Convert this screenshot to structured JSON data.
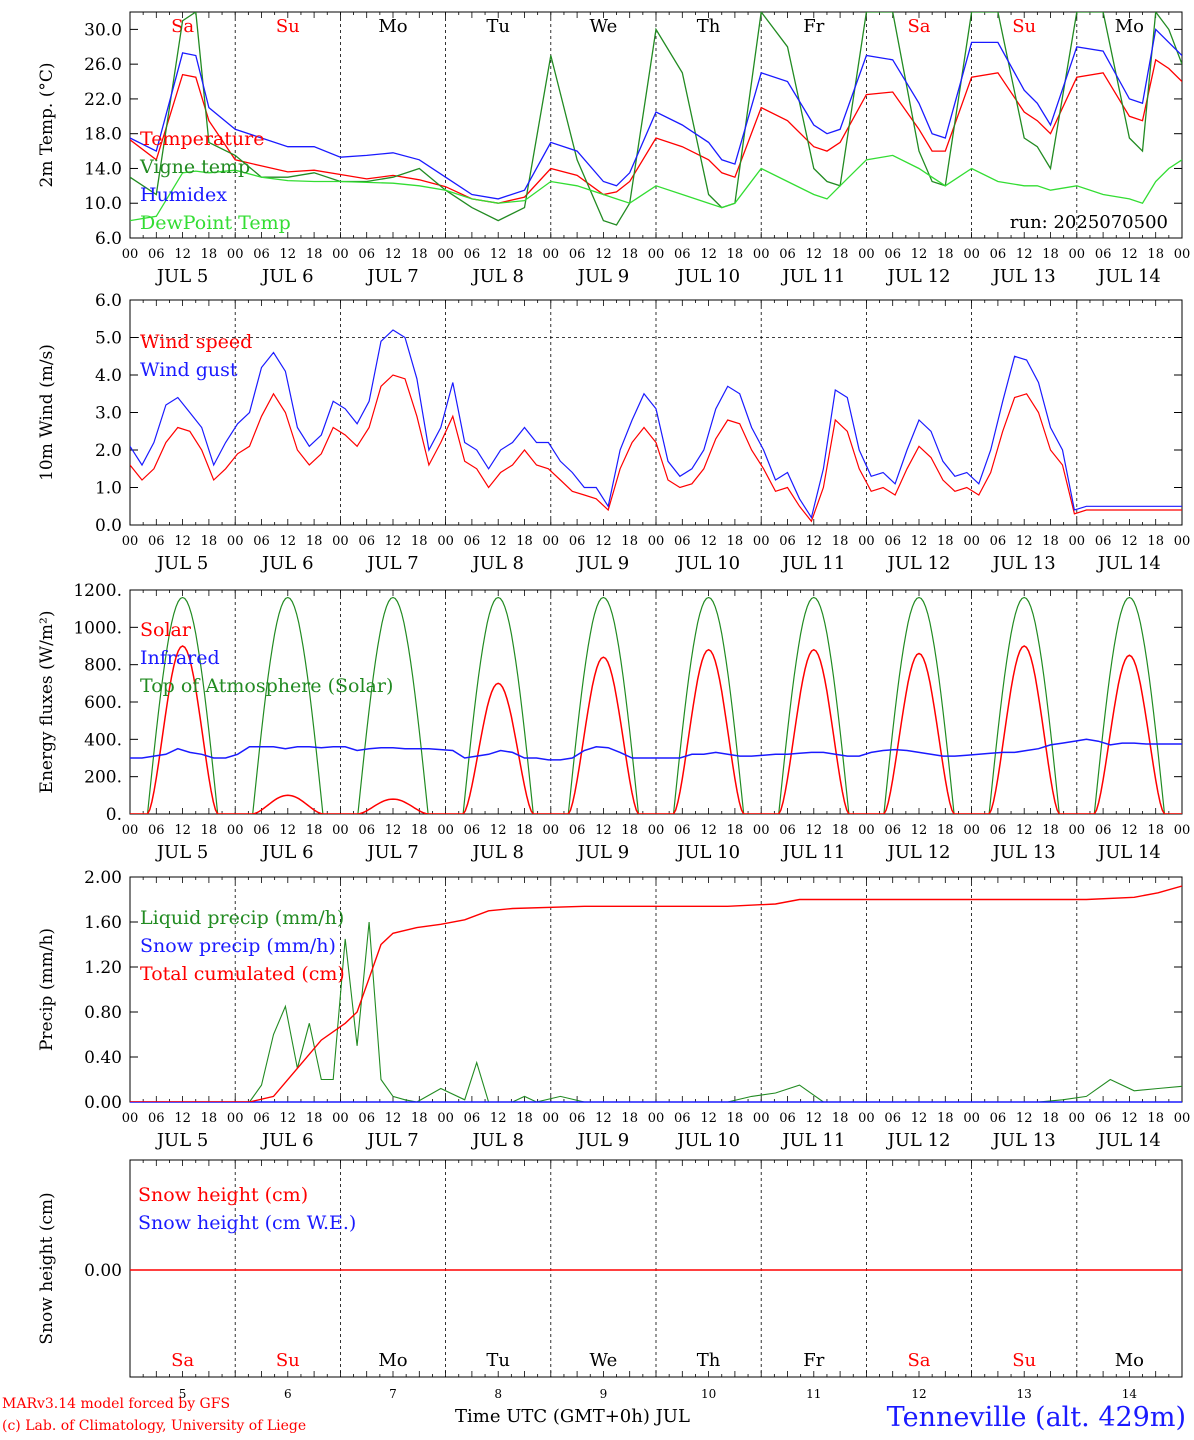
{
  "footer": {
    "model_line": "MARv3.14 model forced by GFS",
    "credit_line": "(c) Lab. of Climatology, University of Liege",
    "xlabel": "Time UTC (GMT+0h) JUL",
    "station": "Tenneville (alt. 429m)"
  },
  "colors": {
    "temperature": "#ff0000",
    "vigne": "#228b22",
    "humidex": "#1a1aff",
    "dewpoint": "#33dd33",
    "wind_speed": "#ff0000",
    "wind_gust": "#1a1aff",
    "solar": "#ff0000",
    "infrared": "#1a1aff",
    "toa": "#228b22",
    "liquid": "#228b22",
    "snow_precip": "#1a1aff",
    "cumulated": "#ff0000",
    "snow_height": "#ff0000",
    "weekend": "#ff0000",
    "weekday": "#000000"
  },
  "days": [
    "Sa",
    "Su",
    "Mo",
    "Tu",
    "We",
    "Th",
    "Fr",
    "Sa",
    "Su",
    "Mo"
  ],
  "weekend": [
    true,
    true,
    false,
    false,
    false,
    false,
    false,
    true,
    true,
    false
  ],
  "dates": [
    "JUL  5",
    "JUL  6",
    "JUL  7",
    "JUL  8",
    "JUL  9",
    "JUL 10",
    "JUL 11",
    "JUL 12",
    "JUL 13",
    "JUL 14"
  ],
  "day_numbers": [
    "5",
    "6",
    "7",
    "8",
    "9",
    "10",
    "11",
    "12",
    "13",
    "14"
  ],
  "hour_ticks": [
    "00",
    "06",
    "12",
    "18"
  ],
  "hour_end": "00",
  "chart_data": [
    {
      "type": "line",
      "ylabel": "2m Temp. (°C)",
      "ylim": [
        6.0,
        32.0
      ],
      "yticks": [
        "6.0",
        "10.0",
        "14.0",
        "18.0",
        "22.0",
        "26.0",
        "30.0"
      ],
      "annotation": "run: 2025070500",
      "x_hours": [
        0,
        6,
        12,
        15,
        18,
        24,
        30,
        36,
        42,
        48,
        54,
        60,
        66,
        72,
        78,
        84,
        90,
        96,
        102,
        108,
        111,
        114,
        120,
        126,
        132,
        135,
        138,
        144,
        150,
        156,
        159,
        162,
        168,
        174,
        180,
        183,
        186,
        192,
        198,
        204,
        207,
        210,
        216,
        222,
        228,
        231,
        234
      ],
      "series": [
        {
          "name": "Temperature",
          "key": "temperature",
          "values": [
            17.3,
            15.0,
            24.8,
            24.5,
            19.5,
            15.0,
            14.3,
            13.6,
            13.8,
            13.3,
            12.8,
            13.2,
            12.7,
            11.9,
            10.5,
            10.0,
            10.7,
            14.0,
            13.2,
            11.0,
            11.3,
            12.5,
            17.5,
            16.5,
            15.0,
            13.5,
            13.0,
            21.0,
            19.5,
            16.5,
            16.0,
            17.0,
            22.5,
            22.8,
            18.5,
            16.0,
            16.0,
            24.5,
            25.0,
            20.5,
            19.5,
            18.0,
            24.5,
            25.0,
            20.0,
            19.5,
            26.5
          ]
        },
        {
          "name": "Vigne temp",
          "key": "vigne",
          "values": [
            13.0,
            11.0,
            31.0,
            32.0,
            17.0,
            15.5,
            13.0,
            13.0,
            13.5,
            12.5,
            12.5,
            13.0,
            14.0,
            11.5,
            9.5,
            8.0,
            9.5,
            27.0,
            15.0,
            8.0,
            7.5,
            10.0,
            30.0,
            25.0,
            11.0,
            9.5,
            10.0,
            32.0,
            28.0,
            14.0,
            12.5,
            12.0,
            32.0,
            32.0,
            16.0,
            12.5,
            12.0,
            32.0,
            32.0,
            17.5,
            16.5,
            14.0,
            32.0,
            32.0,
            17.5,
            16.0,
            32.0
          ]
        },
        {
          "name": "Humidex",
          "key": "humidex",
          "values": [
            17.5,
            16.0,
            27.3,
            27.0,
            21.0,
            18.5,
            17.5,
            16.5,
            16.5,
            15.3,
            15.5,
            15.8,
            15.0,
            13.0,
            11.0,
            10.5,
            11.5,
            17.0,
            16.0,
            12.5,
            12.0,
            13.5,
            20.5,
            19.0,
            17.0,
            15.0,
            14.5,
            25.0,
            24.0,
            19.0,
            18.0,
            18.5,
            27.0,
            26.5,
            21.5,
            18.0,
            17.5,
            28.5,
            28.5,
            23.0,
            21.5,
            19.0,
            28.0,
            27.5,
            22.0,
            21.5,
            30.0
          ]
        },
        {
          "name": "DewPoint Temp",
          "key": "dewpoint",
          "values": [
            8.0,
            8.5,
            13.5,
            13.7,
            13.5,
            13.8,
            13.0,
            12.6,
            12.5,
            12.5,
            12.4,
            12.3,
            12.0,
            11.5,
            10.5,
            10.0,
            10.3,
            12.5,
            12.0,
            11.0,
            10.5,
            10.0,
            12.0,
            11.0,
            10.0,
            9.5,
            10.0,
            14.0,
            12.5,
            11.0,
            10.5,
            12.0,
            15.0,
            15.5,
            14.0,
            13.0,
            12.0,
            14.0,
            12.5,
            12.0,
            12.0,
            11.5,
            12.0,
            11.0,
            10.5,
            10.0,
            12.5
          ]
        }
      ],
      "extension": {
        "x_hours": [
          234,
          237,
          240,
          243,
          246,
          249,
          252,
          255,
          258,
          261,
          264
        ],
        "temperature": [
          26.5,
          25.5,
          24.0,
          22.5,
          21.5,
          20.5,
          20.0,
          19.5,
          19.3,
          19.0,
          18.8
        ],
        "vigne": [
          32.0,
          30.0,
          26.0,
          23.0,
          21.0,
          19.0,
          18.0,
          17.0,
          16.0,
          15.5,
          15.8
        ],
        "humidex": [
          30.0,
          28.5,
          27.0,
          25.5,
          24.5,
          24.0,
          23.5,
          23.5,
          23.5,
          23.2,
          23.0
        ],
        "dewpoint": [
          12.5,
          14.0,
          15.0,
          15.5,
          16.0,
          16.5,
          16.8,
          16.5,
          16.0,
          15.8,
          15.7
        ]
      }
    },
    {
      "type": "line",
      "ylabel": "10m Wind (m/s)",
      "ylim": [
        0.0,
        6.0
      ],
      "yticks": [
        "0.0",
        "1.0",
        "2.0",
        "3.0",
        "4.0",
        "5.0",
        "6.0"
      ],
      "ref_line": 5.0,
      "x_hours": [
        0,
        3,
        6,
        9,
        12,
        15,
        18,
        21,
        24,
        27,
        30,
        33,
        36,
        39,
        42,
        45,
        48,
        51,
        54,
        57,
        60,
        63,
        66,
        69,
        72,
        75,
        78,
        81,
        84,
        87,
        90,
        93,
        96,
        99,
        102,
        105,
        108,
        111,
        114,
        117,
        120,
        123,
        126,
        129,
        132,
        135,
        138,
        141,
        144,
        147,
        150,
        153,
        156,
        159,
        162,
        165,
        168,
        171,
        174,
        177,
        180,
        183,
        186,
        189,
        192,
        195,
        198,
        201,
        204,
        207,
        210,
        213,
        216,
        219,
        222,
        225,
        228,
        231,
        234,
        237,
        240,
        243,
        246,
        249,
        252,
        255,
        258,
        261,
        264
      ],
      "series": [
        {
          "name": "Wind speed",
          "key": "wind_speed",
          "values": [
            1.6,
            1.2,
            1.5,
            2.2,
            2.6,
            2.5,
            2.0,
            1.2,
            1.5,
            1.9,
            2.1,
            2.9,
            3.5,
            3.0,
            2.0,
            1.6,
            1.9,
            2.6,
            2.4,
            2.1,
            2.6,
            3.7,
            4.0,
            3.9,
            2.9,
            1.6,
            2.2,
            2.9,
            1.7,
            1.5,
            1.0,
            1.4,
            1.6,
            2.0,
            1.6,
            1.5,
            1.2,
            0.9,
            0.8,
            0.7,
            0.4,
            1.5,
            2.2,
            2.6,
            2.2,
            1.2,
            1.0,
            1.1,
            1.5,
            2.3,
            2.8,
            2.7,
            2.0,
            1.5,
            0.9,
            1.0,
            0.5,
            0.1,
            1.0,
            2.8,
            2.5,
            1.5,
            0.9,
            1.0,
            0.8,
            1.5,
            2.1,
            1.8,
            1.2,
            0.9,
            1.0,
            0.8,
            1.4,
            2.5,
            3.4,
            3.5,
            3.0,
            2.0,
            1.6,
            0.3,
            0.4,
            0.4,
            0.4,
            0.4,
            0.4,
            0.4,
            0.4,
            0.4,
            0.4
          ]
        },
        {
          "name": "Wind gust",
          "key": "wind_gust",
          "values": [
            2.1,
            1.6,
            2.2,
            3.2,
            3.4,
            3.0,
            2.6,
            1.6,
            2.2,
            2.7,
            3.0,
            4.2,
            4.6,
            4.1,
            2.6,
            2.1,
            2.4,
            3.3,
            3.1,
            2.7,
            3.3,
            4.9,
            5.2,
            5.0,
            3.9,
            2.0,
            2.6,
            3.8,
            2.2,
            2.0,
            1.5,
            2.0,
            2.2,
            2.6,
            2.2,
            2.2,
            1.7,
            1.4,
            1.0,
            1.0,
            0.5,
            2.0,
            2.8,
            3.5,
            3.1,
            1.7,
            1.3,
            1.5,
            2.0,
            3.1,
            3.7,
            3.5,
            2.6,
            2.0,
            1.2,
            1.4,
            0.7,
            0.2,
            1.5,
            3.6,
            3.4,
            2.0,
            1.3,
            1.4,
            1.1,
            2.0,
            2.8,
            2.5,
            1.7,
            1.3,
            1.4,
            1.1,
            2.0,
            3.3,
            4.5,
            4.4,
            3.8,
            2.6,
            2.0,
            0.4,
            0.5,
            0.5,
            0.5,
            0.5,
            0.5,
            0.5,
            0.5,
            0.5,
            0.5
          ]
        }
      ]
    },
    {
      "type": "line",
      "ylabel": "Energy fluxes (W/m²)",
      "ylim": [
        0,
        1200
      ],
      "yticks": [
        "0.",
        "200.",
        "400.",
        "600.",
        "800.",
        "1000.",
        "1200."
      ],
      "solar_peaks": [
        900,
        100,
        80,
        700,
        840,
        880,
        880,
        860,
        900,
        850
      ],
      "toa_peak": 1160,
      "day_start_hour": 4,
      "day_end_hour": 20,
      "infrared": {
        "name": "Infrared",
        "key": "infrared",
        "values": [
          300,
          300,
          310,
          320,
          350,
          330,
          320,
          300,
          300,
          320,
          360,
          360,
          360,
          350,
          360,
          360,
          355,
          360,
          360,
          340,
          350,
          355,
          355,
          350,
          350,
          350,
          345,
          340,
          300,
          310,
          320,
          340,
          330,
          300,
          300,
          290,
          290,
          300,
          340,
          360,
          355,
          330,
          300,
          300,
          300,
          300,
          300,
          320,
          320,
          330,
          320,
          310,
          310,
          315,
          320,
          320,
          325,
          330,
          330,
          320,
          310,
          310,
          330,
          340,
          345,
          340,
          330,
          320,
          310,
          310,
          315,
          320,
          325,
          330,
          330,
          340,
          350,
          370,
          380,
          390,
          400,
          390,
          370,
          380,
          380,
          375,
          375,
          375,
          375
        ]
      },
      "series": [
        {
          "name": "Solar",
          "key": "solar"
        },
        {
          "name": "Infrared",
          "key": "infrared"
        },
        {
          "name": "Top of Atmosphere (Solar)",
          "key": "toa"
        }
      ]
    },
    {
      "type": "line",
      "ylabel": "Precip (mm/h)",
      "ylim": [
        0.0,
        2.0
      ],
      "yticks": [
        "0.00",
        "0.40",
        "0.80",
        "1.20",
        "1.60",
        "2.00"
      ],
      "liquid": {
        "x_hours": [
          0,
          30,
          33,
          36,
          39,
          42,
          45,
          48,
          51,
          54,
          57,
          60,
          63,
          66,
          69,
          72,
          78,
          84,
          87,
          90,
          96,
          99,
          102,
          108,
          114,
          120,
          150,
          156,
          162,
          168,
          174,
          180,
          222,
          228,
          234,
          240,
          246,
          252,
          258,
          264
        ],
        "values": [
          0,
          0,
          0.15,
          0.6,
          0.85,
          0.3,
          0.7,
          0.2,
          0.2,
          1.45,
          0.5,
          1.6,
          0.2,
          0.05,
          0.02,
          0.0,
          0.12,
          0.02,
          0.35,
          0.0,
          0.0,
          0.05,
          0.0,
          0.05,
          0.0,
          0.0,
          0.0,
          0.05,
          0.08,
          0.15,
          0.0,
          0.0,
          0.0,
          0.0,
          0.02,
          0.05,
          0.2,
          0.1,
          0.12,
          0.14
        ]
      },
      "cumulated": {
        "x_hours": [
          0,
          30,
          36,
          42,
          48,
          54,
          57,
          60,
          63,
          66,
          72,
          78,
          84,
          90,
          96,
          114,
          150,
          162,
          168,
          210,
          240,
          252,
          258,
          264
        ],
        "values": [
          0,
          0,
          0.05,
          0.3,
          0.55,
          0.7,
          0.8,
          1.1,
          1.4,
          1.5,
          1.55,
          1.58,
          1.62,
          1.7,
          1.72,
          1.74,
          1.74,
          1.76,
          1.8,
          1.8,
          1.8,
          1.82,
          1.86,
          1.92
        ]
      },
      "snow": {
        "value": 0.0
      },
      "series": [
        {
          "name": "Liquid precip (mm/h)",
          "key": "liquid"
        },
        {
          "name": "Snow precip (mm/h)",
          "key": "snow_precip"
        },
        {
          "name": "Total cumulated (cm)",
          "key": "cumulated"
        }
      ]
    },
    {
      "type": "line",
      "ylabel": "Snow height (cm)",
      "yticks": [
        "0.00"
      ],
      "value": 0.0,
      "series": [
        {
          "name": "Snow height (cm)",
          "key": "snow_height"
        },
        {
          "name": "Snow height (cm W.E.)",
          "key": "humidex"
        }
      ]
    }
  ]
}
